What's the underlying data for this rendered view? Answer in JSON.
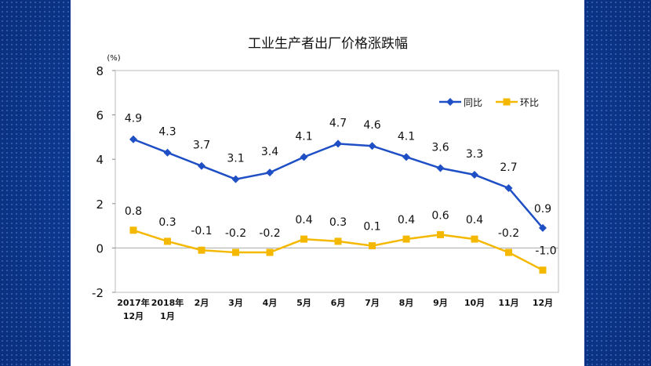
{
  "chart_data": {
    "type": "line",
    "title": "工业生产者出厂价格涨跌幅",
    "ylabel": "(%)",
    "ylim": [
      -2,
      8
    ],
    "yticks": [
      -2,
      0,
      2,
      4,
      6,
      8
    ],
    "categories": [
      [
        "2017年",
        "12月"
      ],
      [
        "2018年",
        "1月"
      ],
      [
        "2月"
      ],
      [
        "3月"
      ],
      [
        "4月"
      ],
      [
        "5月"
      ],
      [
        "6月"
      ],
      [
        "7月"
      ],
      [
        "8月"
      ],
      [
        "9月"
      ],
      [
        "10月"
      ],
      [
        "11月"
      ],
      [
        "12月"
      ]
    ],
    "series": [
      {
        "name": "同比",
        "color": "#1f4fc4",
        "marker": "diamond",
        "values": [
          4.9,
          4.3,
          3.7,
          3.1,
          3.4,
          4.1,
          4.7,
          4.6,
          4.1,
          3.6,
          3.3,
          2.7,
          0.9
        ],
        "labels": [
          "4.9",
          "4.3",
          "3.7",
          "3.1",
          "3.4",
          "4.1",
          "4.7",
          "4.6",
          "4.1",
          "3.6",
          "3.3",
          "2.7",
          "0.9"
        ]
      },
      {
        "name": "环比",
        "color": "#f5b800",
        "marker": "square",
        "values": [
          0.8,
          0.3,
          -0.1,
          -0.2,
          -0.2,
          0.4,
          0.3,
          0.1,
          0.4,
          0.6,
          0.4,
          -0.2,
          -1.0
        ],
        "labels": [
          "0.8",
          "0.3",
          "-0.1",
          "-0.2",
          "-0.2",
          "0.4",
          "0.3",
          "0.1",
          "0.4",
          "0.6",
          "0.4",
          "-0.2",
          "-1.0"
        ]
      }
    ],
    "legend_position": "top-right",
    "grid": false
  }
}
